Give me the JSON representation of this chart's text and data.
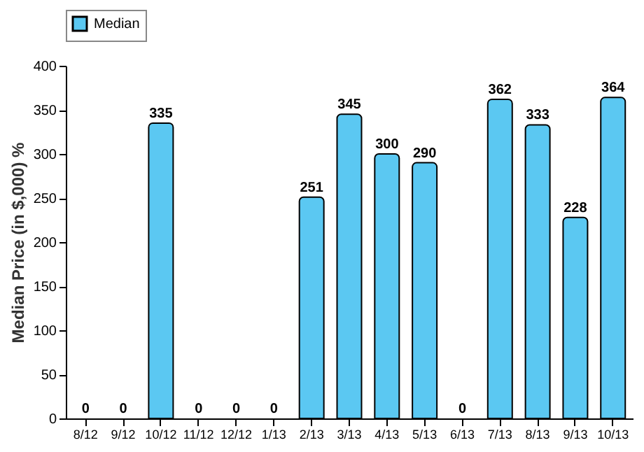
{
  "chart_data": {
    "type": "bar",
    "ylabel": "Median Price (in $,000) %",
    "categories": [
      "8/12",
      "9/12",
      "10/12",
      "11/12",
      "12/12",
      "1/13",
      "2/13",
      "3/13",
      "4/13",
      "5/13",
      "6/13",
      "7/13",
      "8/13",
      "9/13",
      "10/13"
    ],
    "series": [
      {
        "name": "Median",
        "color": "#5bc8f2",
        "values": [
          0,
          0,
          335,
          0,
          0,
          0,
          251,
          345,
          300,
          290,
          0,
          362,
          333,
          228,
          364
        ]
      }
    ],
    "ylim": [
      0,
      400
    ],
    "yticks": [
      0,
      50,
      100,
      150,
      200,
      250,
      300,
      350,
      400
    ],
    "data_labels": true,
    "legend": "top",
    "grid": false
  }
}
